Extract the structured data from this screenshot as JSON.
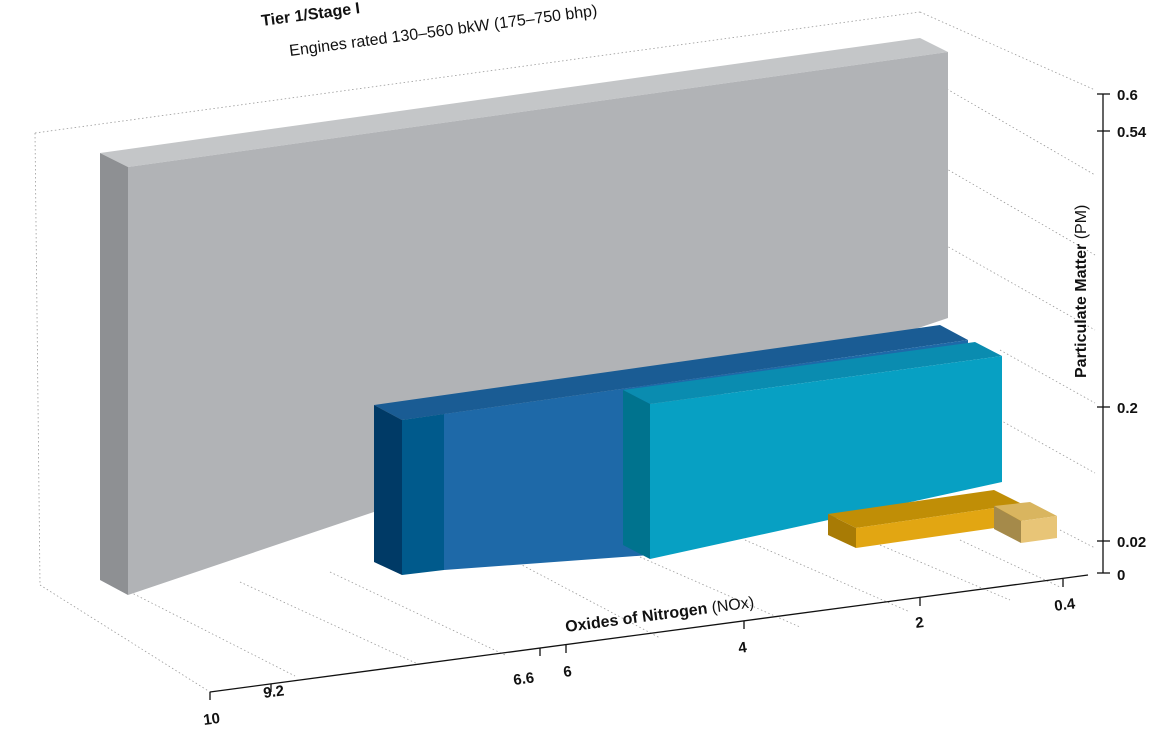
{
  "chart_data": {
    "type": "bar",
    "title": "Tier 1/Stage I",
    "subtitle": "Engines rated 130–560 bkW (175–750 bhp)",
    "x_axis": {
      "label_bold": "Oxides of Nitrogen",
      "label_plain": "(NOx)",
      "ticks": [
        "10",
        "9.2",
        "6.6",
        "6",
        "4",
        "2",
        "0.4"
      ],
      "range": [
        10,
        0
      ]
    },
    "y_axis": {
      "label_bold": "Particulate Matter",
      "label_plain": "(PM)",
      "ticks": [
        "0.6",
        "0.54",
        "0.2",
        "0.02",
        "0"
      ],
      "range": [
        0,
        0.6
      ]
    },
    "bars": [
      {
        "nox": 9.2,
        "pm": 0.54,
        "color": "#b1b3b6"
      },
      {
        "nox": 6.6,
        "pm": 0.2,
        "color": "#1e69a8"
      },
      {
        "nox": 4.0,
        "pm": 0.2,
        "color": "#07a0c3"
      },
      {
        "nox": 2.0,
        "pm": 0.02,
        "color": "#e2a612"
      },
      {
        "nox": 0.4,
        "pm": 0.02,
        "color": "#e8c577"
      }
    ]
  }
}
